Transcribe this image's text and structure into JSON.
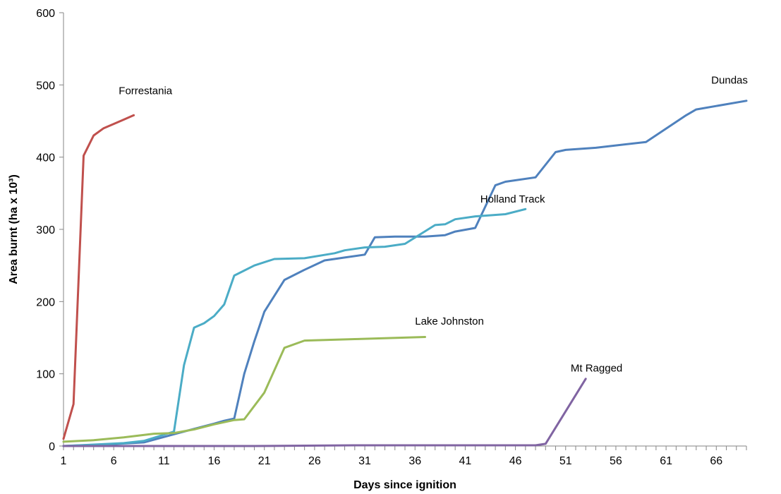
{
  "chart_data": {
    "type": "line",
    "title": "",
    "xlabel": "Days since ignition",
    "ylabel": "Area burnt (ha x 10³)",
    "xlim": [
      1,
      69
    ],
    "ylim": [
      0,
      600
    ],
    "x_ticks": [
      1,
      6,
      11,
      16,
      21,
      26,
      31,
      36,
      41,
      46,
      51,
      56,
      61,
      66
    ],
    "y_ticks": [
      0,
      100,
      200,
      300,
      400,
      500,
      600
    ],
    "grid": false,
    "legend": "none",
    "series": [
      {
        "name": "Forrestania",
        "color": "#c0504d",
        "label_x": 6.5,
        "label_y": 487,
        "points": [
          [
            1,
            10
          ],
          [
            2,
            58
          ],
          [
            3,
            402
          ],
          [
            4,
            430
          ],
          [
            5,
            440
          ],
          [
            6,
            446
          ],
          [
            7,
            452
          ],
          [
            8,
            458
          ]
        ]
      },
      {
        "name": "Dundas",
        "color": "#4f81bd",
        "label_x": 65.5,
        "label_y": 502,
        "points": [
          [
            1,
            0
          ],
          [
            5,
            2
          ],
          [
            9,
            5
          ],
          [
            13,
            20
          ],
          [
            16,
            31
          ],
          [
            17,
            35
          ],
          [
            18,
            38
          ],
          [
            19,
            100
          ],
          [
            20,
            145
          ],
          [
            21,
            186
          ],
          [
            23,
            230
          ],
          [
            25,
            244
          ],
          [
            27,
            257
          ],
          [
            29,
            261
          ],
          [
            31,
            265
          ],
          [
            32,
            289
          ],
          [
            34,
            290
          ],
          [
            37,
            290
          ],
          [
            39,
            292
          ],
          [
            40,
            297
          ],
          [
            42,
            302
          ],
          [
            44,
            361
          ],
          [
            45,
            366
          ],
          [
            48,
            372
          ],
          [
            50,
            407
          ],
          [
            51,
            410
          ],
          [
            54,
            413
          ],
          [
            59,
            421
          ],
          [
            63,
            458
          ],
          [
            64,
            466
          ],
          [
            69,
            478
          ]
        ]
      },
      {
        "name": "Holland Track",
        "color": "#4bacc6",
        "label_x": 42.5,
        "label_y": 337,
        "points": [
          [
            1,
            0
          ],
          [
            4,
            2
          ],
          [
            7,
            4
          ],
          [
            9,
            7
          ],
          [
            12,
            20
          ],
          [
            13,
            112
          ],
          [
            14,
            164
          ],
          [
            15,
            170
          ],
          [
            16,
            180
          ],
          [
            17,
            196
          ],
          [
            18,
            236
          ],
          [
            20,
            250
          ],
          [
            22,
            259
          ],
          [
            25,
            260
          ],
          [
            28,
            267
          ],
          [
            29,
            271
          ],
          [
            31,
            275
          ],
          [
            33,
            276
          ],
          [
            35,
            280
          ],
          [
            38,
            306
          ],
          [
            39,
            307
          ],
          [
            40,
            314
          ],
          [
            42,
            318
          ],
          [
            45,
            321
          ],
          [
            47,
            328
          ]
        ]
      },
      {
        "name": "Lake Johnston",
        "color": "#9bbb59",
        "label_x": 36,
        "label_y": 168,
        "points": [
          [
            1,
            6
          ],
          [
            4,
            8
          ],
          [
            7,
            12
          ],
          [
            10,
            17
          ],
          [
            12,
            18
          ],
          [
            14,
            23
          ],
          [
            16,
            30
          ],
          [
            18,
            36
          ],
          [
            19,
            37
          ],
          [
            21,
            74
          ],
          [
            23,
            136
          ],
          [
            25,
            146
          ],
          [
            30,
            148
          ],
          [
            37,
            151
          ]
        ]
      },
      {
        "name": "Mt Ragged",
        "color": "#8064a2",
        "label_x": 51.5,
        "label_y": 103,
        "points": [
          [
            1,
            0
          ],
          [
            20,
            0
          ],
          [
            30,
            1
          ],
          [
            40,
            1
          ],
          [
            48,
            1
          ],
          [
            49,
            3
          ],
          [
            53,
            93
          ]
        ]
      }
    ]
  }
}
